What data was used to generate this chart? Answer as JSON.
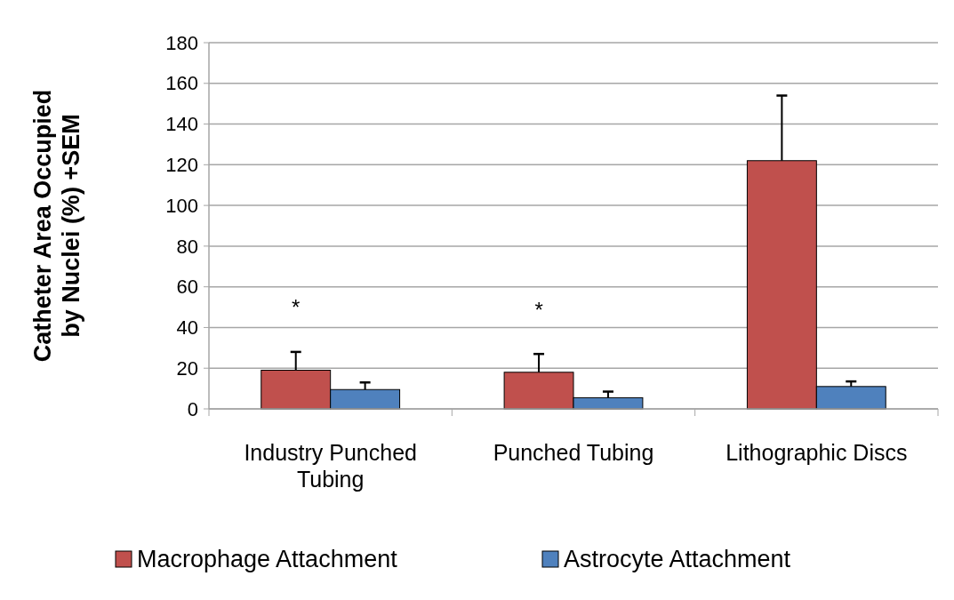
{
  "chart_data": {
    "type": "bar",
    "ylabel": "Catheter Area Occupied\nby Nuclei (%) +SEM",
    "categories": [
      "Industry Punched Tubing",
      "Punched Tubing",
      "Lithographic Discs"
    ],
    "series": [
      {
        "name": "Macrophage Attachment",
        "color": "#c0504d",
        "values": [
          19,
          18,
          122
        ],
        "errors": [
          [
            19,
            28
          ],
          [
            18,
            27
          ],
          [
            122,
            154
          ]
        ]
      },
      {
        "name": "Astrocyte Attachment",
        "color": "#4f81bd",
        "values": [
          9.5,
          5.5,
          11
        ],
        "errors": [
          [
            9.5,
            13
          ],
          [
            5.5,
            8.5
          ],
          [
            11,
            13.5
          ]
        ]
      }
    ],
    "ylim": [
      0,
      180
    ],
    "yticks": [
      0,
      20,
      40,
      60,
      80,
      100,
      120,
      140,
      160,
      180
    ],
    "grid": "y",
    "legend": "bottom",
    "annotations": [
      "*",
      "*"
    ]
  }
}
